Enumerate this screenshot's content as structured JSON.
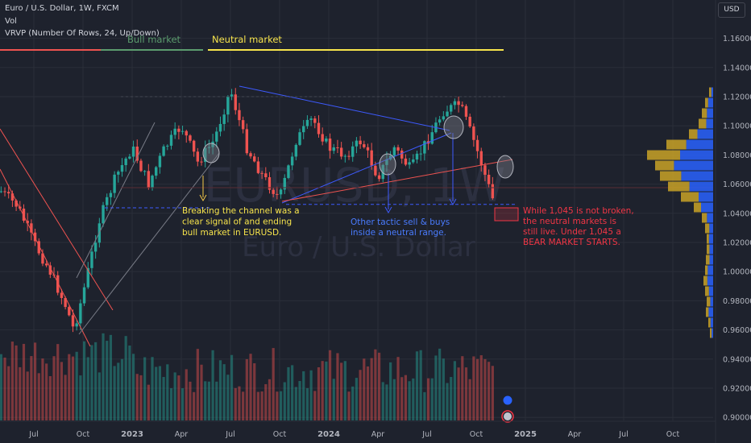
{
  "header": {
    "symbol_line": "Euro / U.S. Dollar, 1W, FXCM",
    "volume_line": "Vol",
    "vrvp_line": "VRVP (Number Of Rows, 24, Up/Down)",
    "currency": "USD"
  },
  "watermark": {
    "ticker": "EURUSD, 1W",
    "name": "Euro / U.S. Dollar"
  },
  "colors": {
    "background": "#1e222d",
    "up": "#26a69a",
    "down": "#ef5350",
    "grid": "#2a2e39",
    "axis_text": "#b2b5be",
    "bull_label": "#5b9c6e",
    "neutral_label": "#f7e44c",
    "trendline": "#3d5afe",
    "bear_text": "#f23645",
    "profile_up": "#2962ff",
    "profile_down": "#c9a227"
  },
  "annotations": {
    "bull_market": "Bull market",
    "neutral_market": "Neutral market",
    "channel_break": [
      "Breaking the channel was a",
      "clear signal of and ending",
      "bull market in EURUSD."
    ],
    "tactic": [
      "Other tactic sell & buys",
      "inside a neutral range."
    ],
    "bear": [
      "While 1,045 is not broken,",
      "the neutral markets is",
      "still live.  Under 1,045 a",
      "BEAR MARKET STARTS."
    ]
  },
  "chart_data": {
    "type": "candlestick",
    "symbol": "EURUSD",
    "timeframe": "1W",
    "x_axis": {
      "ticks": [
        "Jul",
        "Oct",
        "2023",
        "Apr",
        "Jul",
        "Oct",
        "2024",
        "Apr",
        "Jul",
        "Oct",
        "2025",
        "Apr",
        "Jul",
        "Oct"
      ]
    },
    "y_axis": {
      "range": [
        0.895,
        1.175
      ],
      "ticks": [
        "1.16000",
        "1.14000",
        "1.12000",
        "1.10000",
        "1.08000",
        "1.06000",
        "1.04000",
        "1.02000",
        "1.00000",
        "0.98000",
        "0.96000",
        "0.94000",
        "0.92000",
        "0.90000"
      ]
    },
    "price_path": [
      {
        "date": "2022-05",
        "price": 1.055
      },
      {
        "date": "2022-06",
        "price": 1.045
      },
      {
        "date": "2022-07",
        "price": 1.02
      },
      {
        "date": "2022-08",
        "price": 1.0
      },
      {
        "date": "2022-09",
        "price": 0.975
      },
      {
        "date": "2022-09-28",
        "price": 0.96
      },
      {
        "date": "2022-10",
        "price": 0.985
      },
      {
        "date": "2022-11",
        "price": 1.035
      },
      {
        "date": "2022-12",
        "price": 1.065
      },
      {
        "date": "2023-01",
        "price": 1.085
      },
      {
        "date": "2023-02",
        "price": 1.06
      },
      {
        "date": "2023-03",
        "price": 1.085
      },
      {
        "date": "2023-04",
        "price": 1.1
      },
      {
        "date": "2023-05",
        "price": 1.075
      },
      {
        "date": "2023-06",
        "price": 1.09
      },
      {
        "date": "2023-07",
        "price": 1.125
      },
      {
        "date": "2023-08",
        "price": 1.085
      },
      {
        "date": "2023-09",
        "price": 1.065
      },
      {
        "date": "2023-10",
        "price": 1.05
      },
      {
        "date": "2023-11",
        "price": 1.09
      },
      {
        "date": "2023-12",
        "price": 1.105
      },
      {
        "date": "2024-01",
        "price": 1.085
      },
      {
        "date": "2024-02",
        "price": 1.08
      },
      {
        "date": "2024-03",
        "price": 1.09
      },
      {
        "date": "2024-04",
        "price": 1.065
      },
      {
        "date": "2024-05",
        "price": 1.085
      },
      {
        "date": "2024-06",
        "price": 1.07
      },
      {
        "date": "2024-07",
        "price": 1.09
      },
      {
        "date": "2024-08",
        "price": 1.11
      },
      {
        "date": "2024-09",
        "price": 1.115
      },
      {
        "date": "2024-10",
        "price": 1.085
      },
      {
        "date": "2024-11",
        "price": 1.05
      }
    ],
    "levels": [
      {
        "name": "range top",
        "value": 1.12
      },
      {
        "name": "bear threshold",
        "value": 1.045
      }
    ],
    "volume_profile": {
      "rows": 24,
      "mode": "Up/Down"
    }
  }
}
